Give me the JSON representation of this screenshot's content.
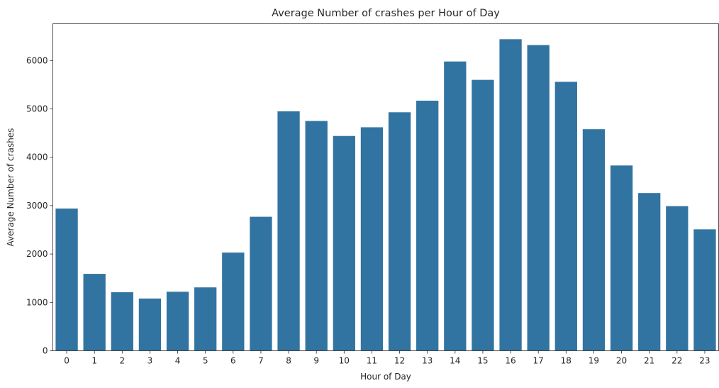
{
  "chart_data": {
    "type": "bar",
    "title": "Average Number of crashes per Hour of Day",
    "xlabel": "Hour of Day",
    "ylabel": "Average Number of crashes",
    "categories": [
      "0",
      "1",
      "2",
      "3",
      "4",
      "5",
      "6",
      "7",
      "8",
      "9",
      "10",
      "11",
      "12",
      "13",
      "14",
      "15",
      "16",
      "17",
      "18",
      "19",
      "20",
      "21",
      "22",
      "23"
    ],
    "values": [
      2940,
      1590,
      1210,
      1080,
      1220,
      1310,
      2030,
      2770,
      4950,
      4750,
      4440,
      4620,
      4930,
      5170,
      5980,
      5600,
      6440,
      6320,
      5560,
      4580,
      3830,
      3260,
      2990,
      2510
    ],
    "ylim": [
      0,
      6760
    ],
    "yticks": [
      0,
      1000,
      2000,
      3000,
      4000,
      5000,
      6000
    ],
    "bar_color": "#3274a1",
    "grid": false,
    "legend": "none"
  }
}
